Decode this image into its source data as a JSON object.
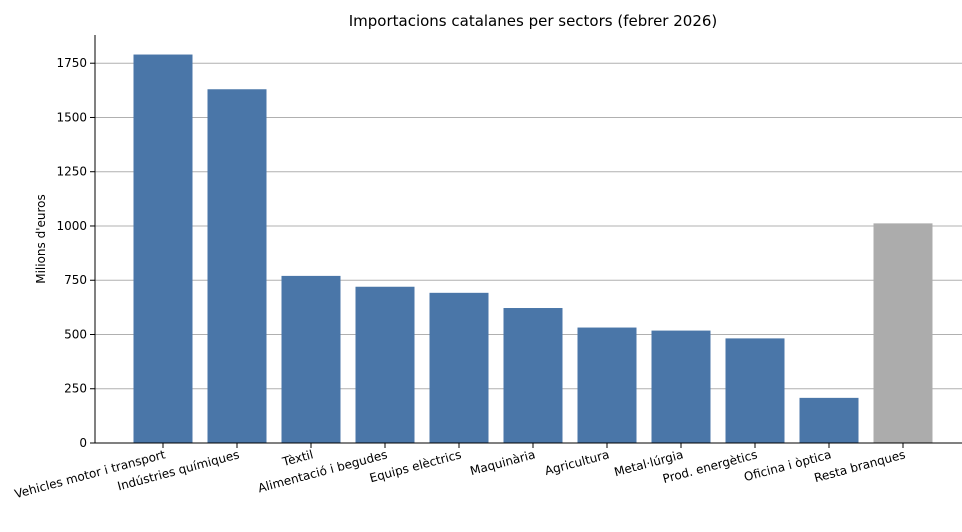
{
  "chart_data": {
    "type": "bar",
    "title": "Importacions catalanes per sectors (febrer 2026)",
    "xlabel": "",
    "ylabel": "Milions d'euros",
    "categories": [
      "Vehicles motor i transport",
      "Indústries químiques",
      "Tèxtil",
      "Alimentació i begudes",
      "Equips elèctrics",
      "Maquinària",
      "Agricultura",
      "Metal·lúrgia",
      "Prod. energètics",
      "Oficina i òptica",
      "Resta branques"
    ],
    "values": [
      1790,
      1630,
      770,
      720,
      692,
      622,
      532,
      518,
      482,
      208,
      1012
    ],
    "bar_colors": [
      "#4a76a8",
      "#4a76a8",
      "#4a76a8",
      "#4a76a8",
      "#4a76a8",
      "#4a76a8",
      "#4a76a8",
      "#4a76a8",
      "#4a76a8",
      "#4a76a8",
      "#acacac"
    ],
    "ylim": [
      0,
      1880
    ],
    "yticks": [
      0,
      250,
      500,
      750,
      1000,
      1250,
      1500,
      1750
    ],
    "grid": "y",
    "legend": "none"
  }
}
